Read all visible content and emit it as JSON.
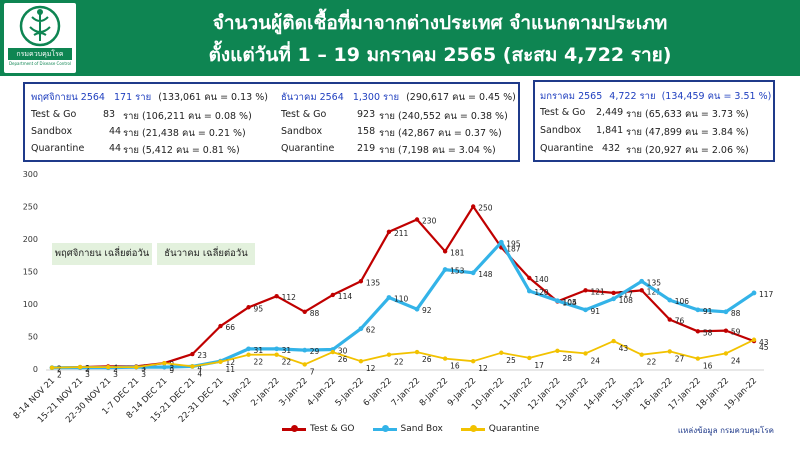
{
  "header": {
    "title_line1": "จำนวนผู้ติดเชื้อที่มาจากต่างประเทศ จำแนกตามประเภท",
    "title_line2": "ตั้งแต่วันที่  1 – 19  มกราคม  2565 (สะสม 4,722 ราย)",
    "logo_name": "กรมควบคุมโรค",
    "logo_sub": "Department of Disease Control"
  },
  "boxes": [
    {
      "head": {
        "label": "พฤศจิกายน 2564",
        "value": "171 ราย",
        "detail": "(133,061 คน = 0.13 %)"
      },
      "rows": [
        {
          "label": "Test & Go",
          "value": "83",
          "detail": "ราย (106,211 คน = 0.08 %)"
        },
        {
          "label": "Sandbox",
          "value": "44",
          "detail": "ราย (21,438 คน  = 0.21 %)"
        },
        {
          "label": "Quarantine",
          "value": "44",
          "detail": "ราย  (5,412 คน  = 0.81 %)"
        }
      ]
    },
    {
      "head": {
        "label": "ธันวาคม 2564",
        "value": "1,300 ราย",
        "detail": "(290,617 คน = 0.45 %)"
      },
      "rows": [
        {
          "label": "Test & Go",
          "value": "923",
          "detail": "ราย (240,552 คน = 0.38 %)"
        },
        {
          "label": "Sandbox",
          "value": "158",
          "detail": "ราย (42,867 คน  = 0.37 %)"
        },
        {
          "label": "Quarantine",
          "value": "219",
          "detail": "ราย  (7,198 คน  = 3.04 %)"
        }
      ]
    },
    {
      "head": {
        "label": "มกราคม 2565",
        "value": "4,722 ราย",
        "detail": "(134,459 คน = 3.51 %)"
      },
      "rows": [
        {
          "label": "Test & Go",
          "value": "2,449",
          "detail": "ราย (65,633 คน = 3.73 %)"
        },
        {
          "label": "Sandbox",
          "value": "1,841",
          "detail": "ราย (47,899 คน = 3.84 %)"
        },
        {
          "label": "Quarantine",
          "value": "432",
          "detail": "ราย (20,927 คน = 2.06 %)"
        }
      ]
    }
  ],
  "period_labels": [
    "พฤศจิกายน เฉลี่ยต่อวัน",
    "ธันวาคม เฉลี่ยต่อวัน"
  ],
  "source": "แหล่งข้อมูล กรมควบคุมโรค",
  "chart_data": {
    "type": "line",
    "title": "",
    "xlabel": "",
    "ylabel": "",
    "ylim": [
      0,
      300
    ],
    "yticks": [
      0,
      50,
      100,
      150,
      200,
      250,
      300
    ],
    "grid": false,
    "legend_position": "bottom",
    "categories": [
      "8-14 NOV 21",
      "15-21 NOV 21",
      "22-30 NOV 21",
      "1-7 DEC 21",
      "8-14 DEC 21",
      "15-21 DEC 21",
      "22-31 DEC 21",
      "1-Jan-22",
      "2-Jan-22",
      "3-Jan-22",
      "4-Jan-22",
      "5-Jan-22",
      "6-Jan-22",
      "7-Jan-22",
      "8-Jan-22",
      "9-Jan-22",
      "10-Jan-22",
      "11-Jan-22",
      "12-Jan-22",
      "13-Jan-22",
      "14-Jan-22",
      "15-Jan-22",
      "16-Jan-22",
      "17-Jan-22",
      "18-Jan-22",
      "19-Jan-22"
    ],
    "series": [
      {
        "name": "Test & GO",
        "color": "#c00000",
        "values": [
          2,
          3,
          4,
          4,
          9,
          23,
          66,
          95,
          112,
          88,
          114,
          135,
          211,
          230,
          181,
          250,
          187,
          140,
          104,
          121,
          117,
          121,
          76,
          58,
          59,
          43
        ]
      },
      {
        "name": "Sand Box",
        "color": "#33b3e8",
        "values": [
          2,
          2,
          2,
          3,
          3,
          4,
          12,
          31,
          31,
          29,
          30,
          62,
          110,
          92,
          153,
          148,
          195,
          120,
          105,
          91,
          108,
          135,
          106,
          91,
          88,
          117
        ]
      },
      {
        "name": "Quarantine",
        "color": "#f2c200",
        "values": [
          2,
          3,
          3,
          3,
          9,
          4,
          11,
          22,
          22,
          7,
          26,
          12,
          22,
          26,
          16,
          12,
          25,
          17,
          28,
          24,
          43,
          22,
          27,
          16,
          24,
          45
        ]
      }
    ]
  }
}
